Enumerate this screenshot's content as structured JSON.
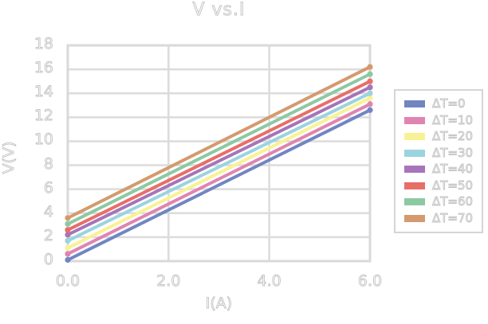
{
  "chart_data": {
    "type": "line",
    "title": "V vs.I",
    "xlabel": "I(A)",
    "ylabel": "V(V)",
    "x": [
      0,
      6
    ],
    "xlim": [
      0,
      6
    ],
    "ylim": [
      0,
      18
    ],
    "xticks": [
      0,
      2,
      4,
      6
    ],
    "xtick_labels": [
      "0.0",
      "2.0",
      "4.0",
      "6.0"
    ],
    "yticks": [
      0,
      2,
      4,
      6,
      8,
      10,
      12,
      14,
      16,
      18
    ],
    "ytick_labels": [
      "0",
      "2",
      "4",
      "6",
      "8",
      "10",
      "12",
      "14",
      "16",
      "18"
    ],
    "grid": true,
    "legend_position": "right",
    "series": [
      {
        "name": "ΔT=0",
        "color": "#7186c1",
        "values": [
          0.1,
          12.6
        ]
      },
      {
        "name": "ΔT=10",
        "color": "#e084b2",
        "values": [
          0.6,
          13.1
        ]
      },
      {
        "name": "ΔT=20",
        "color": "#f8f295",
        "values": [
          1.1,
          13.6
        ]
      },
      {
        "name": "ΔT=30",
        "color": "#9bd3de",
        "values": [
          1.7,
          14.0
        ]
      },
      {
        "name": "ΔT=40",
        "color": "#a674b8",
        "values": [
          2.2,
          14.5
        ]
      },
      {
        "name": "ΔT=50",
        "color": "#e86e68",
        "values": [
          2.6,
          15.0
        ]
      },
      {
        "name": "ΔT=60",
        "color": "#8cc9a3",
        "values": [
          3.1,
          15.6
        ]
      },
      {
        "name": "ΔT=70",
        "color": "#d49a6e",
        "values": [
          3.6,
          16.2
        ]
      }
    ]
  },
  "style": {
    "grid_color": "#dcdcdc",
    "frame_color": "#d9d9d9",
    "text_outline_color": "#c2c2c2",
    "line_width": 4,
    "marker_radius": 3.6
  }
}
